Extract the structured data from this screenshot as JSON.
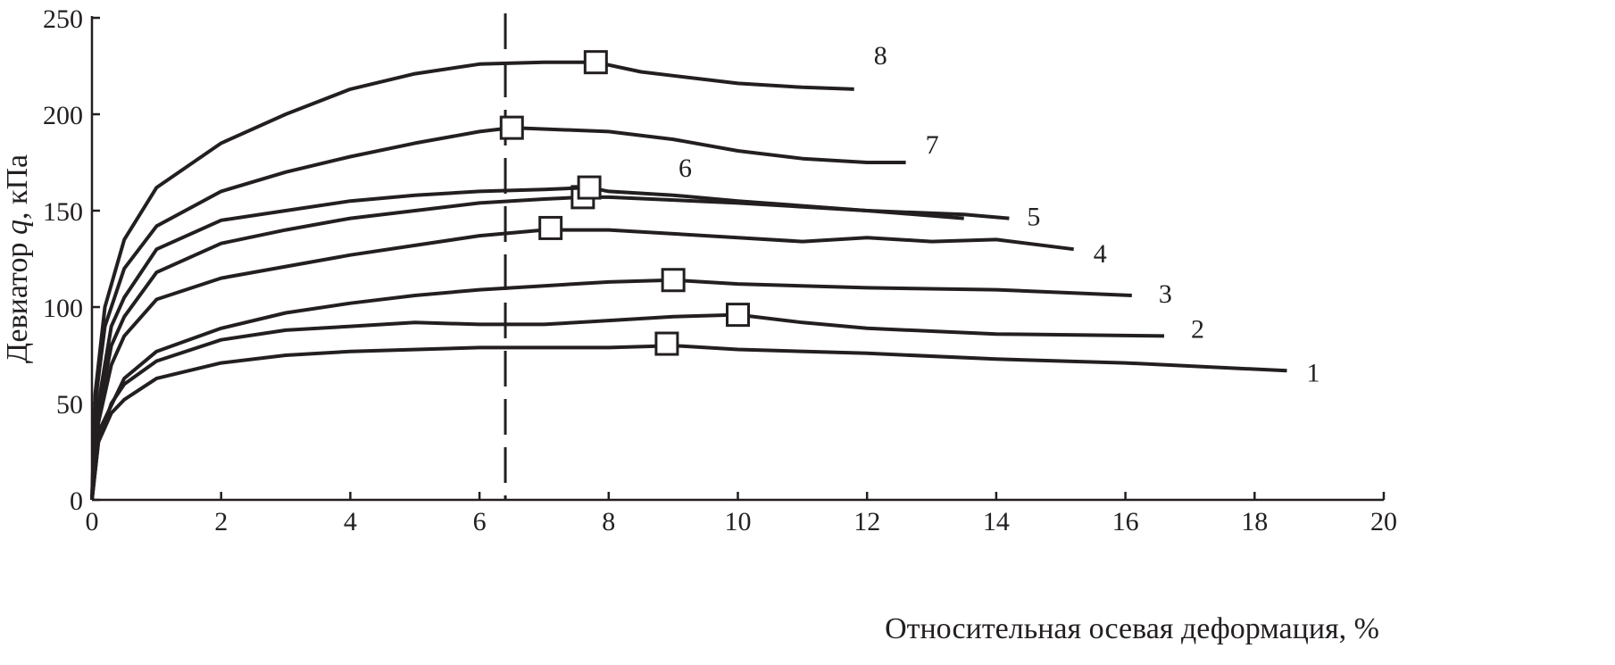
{
  "chart_data": {
    "type": "line",
    "title": "",
    "xlabel": "Относительная осевая деформация, %",
    "ylabel_prefix": "Девиатор ",
    "ylabel_var": "q",
    "ylabel_suffix": ", кПа",
    "xlim": [
      0,
      20
    ],
    "ylim": [
      0,
      250
    ],
    "xticks": [
      "0",
      "2",
      "4",
      "6",
      "8",
      "10",
      "12",
      "14",
      "16",
      "18",
      "20"
    ],
    "yticks": [
      "0",
      "50",
      "100",
      "150",
      "200",
      "250"
    ],
    "grid": false,
    "line_color": "#231f20",
    "vertical_dashed_line_x": 6.4,
    "series": [
      {
        "name": "1",
        "x": [
          0,
          0.1,
          0.3,
          0.5,
          1,
          2,
          3,
          4,
          6,
          8,
          9,
          10,
          12,
          14,
          16,
          18.5
        ],
        "y": [
          0,
          30,
          45,
          52,
          63,
          71,
          75,
          77,
          79,
          79,
          80,
          78,
          76,
          73,
          71,
          67
        ],
        "marker": [
          8.9,
          81
        ]
      },
      {
        "name": "2",
        "x": [
          0,
          0.1,
          0.3,
          0.5,
          1,
          2,
          3,
          4,
          5,
          6,
          7,
          8,
          9,
          10,
          11,
          12,
          14,
          16.6
        ],
        "y": [
          0,
          30,
          50,
          60,
          72,
          83,
          88,
          90,
          92,
          91,
          91,
          93,
          95,
          96,
          92,
          89,
          86,
          85
        ],
        "marker": [
          10,
          96
        ]
      },
      {
        "name": "3",
        "x": [
          0,
          0.1,
          0.5,
          1,
          2,
          3,
          4,
          5,
          6,
          7,
          8,
          9,
          10,
          12,
          14,
          16.1
        ],
        "y": [
          0,
          35,
          63,
          77,
          89,
          97,
          102,
          106,
          109,
          111,
          113,
          114,
          112,
          110,
          109,
          106
        ],
        "marker": [
          9,
          114
        ]
      },
      {
        "name": "4",
        "x": [
          0,
          0.1,
          0.3,
          0.5,
          1,
          2,
          3,
          4,
          5,
          6,
          7,
          8,
          9,
          10,
          11,
          12,
          13,
          14,
          15.2
        ],
        "y": [
          0,
          40,
          70,
          85,
          104,
          115,
          121,
          127,
          132,
          137,
          140,
          140,
          138,
          136,
          134,
          136,
          134,
          135,
          130
        ],
        "marker": [
          7.1,
          141
        ]
      },
      {
        "name": "5",
        "x": [
          0,
          0.1,
          0.3,
          0.5,
          1,
          2,
          3,
          4,
          5,
          6,
          7,
          7.6,
          8,
          10,
          12,
          13.5,
          14.2
        ],
        "y": [
          0,
          45,
          80,
          95,
          118,
          133,
          140,
          146,
          150,
          154,
          156,
          157,
          157,
          154,
          150,
          148,
          146
        ],
        "marker": [
          7.6,
          157
        ]
      },
      {
        "name": "6",
        "x": [
          0,
          0.1,
          0.3,
          0.5,
          1,
          2,
          3,
          4,
          5,
          6,
          7,
          7.7,
          8,
          9,
          10,
          12,
          13.5
        ],
        "y": [
          0,
          50,
          90,
          105,
          130,
          145,
          150,
          155,
          158,
          160,
          161,
          162,
          160,
          158,
          155,
          150,
          146
        ],
        "marker": [
          7.7,
          162
        ]
      },
      {
        "name": "7",
        "x": [
          0,
          0.05,
          0.2,
          0.5,
          1,
          2,
          3,
          4,
          5,
          6,
          6.5,
          8,
          9,
          10,
          11,
          12,
          12.6
        ],
        "y": [
          0,
          50,
          90,
          120,
          142,
          160,
          170,
          178,
          185,
          191,
          193,
          191,
          187,
          181,
          177,
          175,
          175
        ],
        "marker": [
          6.5,
          193
        ]
      },
      {
        "name": "8",
        "x": [
          0,
          0.05,
          0.2,
          0.5,
          1,
          2,
          3,
          4,
          5,
          6,
          7,
          7.8,
          8.5,
          9,
          10,
          11,
          11.8
        ],
        "y": [
          0,
          55,
          100,
          135,
          162,
          185,
          200,
          213,
          221,
          226,
          227,
          227,
          222,
          220,
          216,
          214,
          213
        ],
        "marker": [
          7.8,
          227
        ]
      }
    ]
  }
}
